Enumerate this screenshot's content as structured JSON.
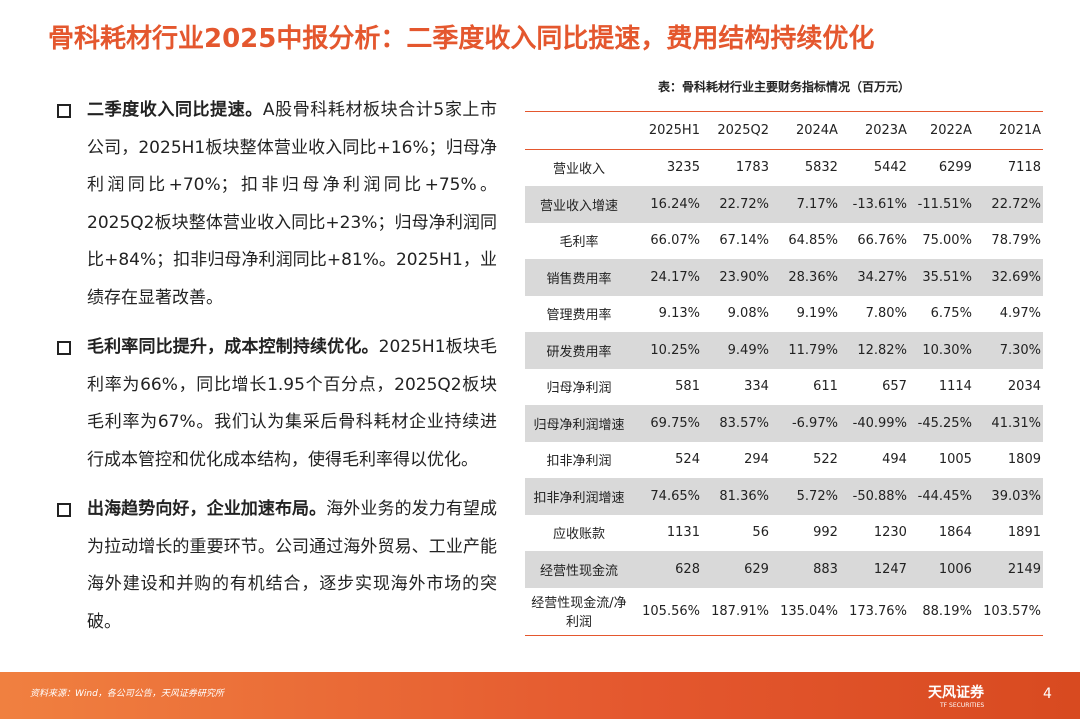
{
  "header": {
    "title": "骨科耗材行业2025中报分析：二季度收入同比提速，费用结构持续优化"
  },
  "bullets": [
    {
      "lead": "二季度收入同比提速。",
      "text": "A股骨科耗材板块合计5家上市公司，2025H1板块整体营业收入同比+16%；归母净利润同比+70%；扣非归母净利润同比+75%。2025Q2板块整体营业收入同比+23%；归母净利润同比+84%；扣非归母净利润同比+81%。2025H1，业绩存在显著改善。"
    },
    {
      "lead": "毛利率同比提升，成本控制持续优化。",
      "text": "2025H1板块毛利率为66%，同比增长1.95个百分点，2025Q2板块毛利率为67%。我们认为集采后骨科耗材企业持续进行成本管控和优化成本结构，使得毛利率得以优化。"
    },
    {
      "lead": "出海趋势向好，企业加速布局。",
      "text": "海外业务的发力有望成为拉动增长的重要环节。公司通过海外贸易、工业产能海外建设和并购的有机结合，逐步实现海外市场的突破。"
    }
  ],
  "table": {
    "caption": "表：骨科耗材行业主要财务指标情况（百万元）",
    "columns": [
      "2025H1",
      "2025Q2",
      "2024A",
      "2023A",
      "2022A",
      "2021A"
    ],
    "rows": [
      {
        "label": "营业收入",
        "cells": [
          "3235",
          "1783",
          "5832",
          "5442",
          "6299",
          "7118"
        ]
      },
      {
        "label": "营业收入增速",
        "cells": [
          "16.24%",
          "22.72%",
          "7.17%",
          "-13.61%",
          "-11.51%",
          "22.72%"
        ]
      },
      {
        "label": "毛利率",
        "cells": [
          "66.07%",
          "67.14%",
          "64.85%",
          "66.76%",
          "75.00%",
          "78.79%"
        ]
      },
      {
        "label": "销售费用率",
        "cells": [
          "24.17%",
          "23.90%",
          "28.36%",
          "34.27%",
          "35.51%",
          "32.69%"
        ]
      },
      {
        "label": "管理费用率",
        "cells": [
          "9.13%",
          "9.08%",
          "9.19%",
          "7.80%",
          "6.75%",
          "4.97%"
        ]
      },
      {
        "label": "研发费用率",
        "cells": [
          "10.25%",
          "9.49%",
          "11.79%",
          "12.82%",
          "10.30%",
          "7.30%"
        ]
      },
      {
        "label": "归母净利润",
        "cells": [
          "581",
          "334",
          "611",
          "657",
          "1114",
          "2034"
        ]
      },
      {
        "label": "归母净利润增速",
        "cells": [
          "69.75%",
          "83.57%",
          "-6.97%",
          "-40.99%",
          "-45.25%",
          "41.31%"
        ]
      },
      {
        "label": "扣非净利润",
        "cells": [
          "524",
          "294",
          "522",
          "494",
          "1005",
          "1809"
        ]
      },
      {
        "label": "扣非净利润增速",
        "cells": [
          "74.65%",
          "81.36%",
          "5.72%",
          "-50.88%",
          "-44.45%",
          "39.03%"
        ]
      },
      {
        "label": "应收账款",
        "cells": [
          "1131",
          "56",
          "992",
          "1230",
          "1864",
          "1891"
        ]
      },
      {
        "label": "经营性现金流",
        "cells": [
          "628",
          "629",
          "883",
          "1247",
          "1006",
          "2149"
        ]
      },
      {
        "label": "经营性现金流/净利润",
        "cells": [
          "105.56%",
          "187.91%",
          "135.04%",
          "173.76%",
          "88.19%",
          "103.57%"
        ]
      }
    ]
  },
  "footer": {
    "source": "资料来源：Wind，各公司公告，天风证券研究所",
    "logo": "天风证券",
    "logo_en": "TF SECURITIES",
    "page": "4"
  }
}
